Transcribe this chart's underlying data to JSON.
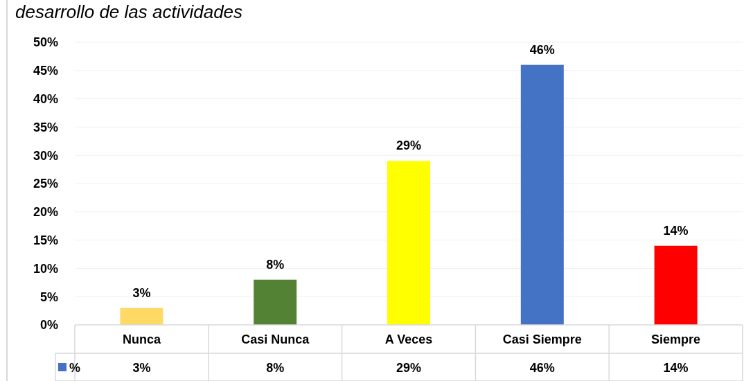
{
  "chart_data": {
    "type": "bar",
    "title": "desarrollo de las actividades",
    "categories": [
      "Nunca",
      "Casi Nunca",
      "A Veces",
      "Casi Siempre",
      "Siempre"
    ],
    "series": [
      {
        "name": "%",
        "color": "#4472c4",
        "colors": [
          "#ffd966",
          "#548235",
          "#ffff00",
          "#4472c4",
          "#ff0000"
        ],
        "values": [
          3,
          8,
          29,
          46,
          14
        ],
        "value_labels": [
          "3%",
          "8%",
          "29%",
          "46%",
          "14%"
        ]
      }
    ],
    "ylim": [
      0,
      50
    ],
    "yticks": [
      {
        "value": 0,
        "label": "0%"
      },
      {
        "value": 5,
        "label": "5%"
      },
      {
        "value": 10,
        "label": "10%"
      },
      {
        "value": 15,
        "label": "15%"
      },
      {
        "value": 20,
        "label": "20%"
      },
      {
        "value": 25,
        "label": "25%"
      },
      {
        "value": 30,
        "label": "30%"
      },
      {
        "value": 35,
        "label": "35%"
      },
      {
        "value": 40,
        "label": "40%"
      },
      {
        "value": 45,
        "label": "45%"
      },
      {
        "value": 50,
        "label": "50%"
      }
    ],
    "grid": "y",
    "legend": "bottom"
  }
}
